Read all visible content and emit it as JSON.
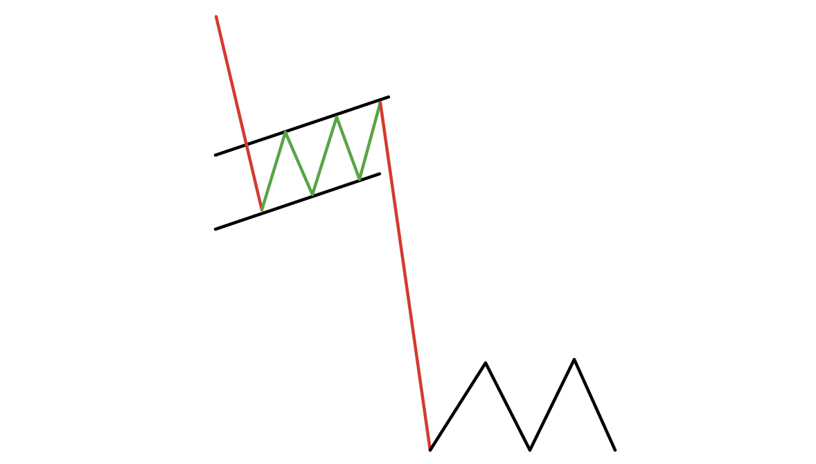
{
  "diagram": {
    "type": "bear-flag-pattern",
    "background": "#ffffff",
    "colors": {
      "flagpole": "#d43a2f",
      "flag_zigzag": "#5aa447",
      "channel": "#000000",
      "continuation": "#000000"
    },
    "elements": [
      "flagpole-upper",
      "flag-channel-top",
      "flag-channel-bottom",
      "flag-zigzag",
      "flagpole-lower",
      "continuation-zigzag"
    ]
  }
}
